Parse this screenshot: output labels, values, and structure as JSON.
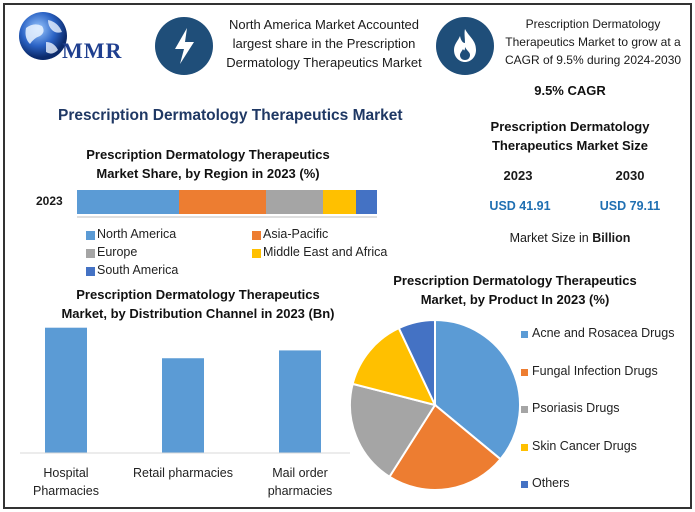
{
  "header": {
    "logo_text": "MMR",
    "box1": "North America Market Accounted largest share in the Prescription Dermatology Therapeutics Market",
    "box2": "Prescription Dermatology Therapeutics Market to grow at a CAGR of 9.5% during 2024-2030",
    "icon1": "lightning-icon",
    "icon2": "flame-icon"
  },
  "main_title": "Prescription Dermatology Therapeutics Market",
  "cagr": "9.5% CAGR",
  "size_panel": {
    "title": "Prescription Dermatology Therapeutics Market Size",
    "year1": "2023",
    "year2": "2030",
    "value1": "USD 41.91",
    "value2": "USD 79.11",
    "note_prefix": "Market Size in ",
    "note_bold": "Billion",
    "value_color": "#1f6fb2"
  },
  "chart_data": [
    {
      "type": "bar",
      "orientation": "horizontal-stacked",
      "title": "Prescription Dermatology Therapeutics Market Share, by Region in 2023 (%)",
      "categories": [
        "2023"
      ],
      "series": [
        {
          "name": "North America",
          "values": [
            34
          ],
          "color": "#5b9bd5"
        },
        {
          "name": "Asia-Pacific",
          "values": [
            29
          ],
          "color": "#ed7d31"
        },
        {
          "name": "Europe",
          "values": [
            19
          ],
          "color": "#a5a5a5"
        },
        {
          "name": "Middle East and Africa",
          "values": [
            11
          ],
          "color": "#ffc000"
        },
        {
          "name": "South America",
          "values": [
            7
          ],
          "color": "#4472c4"
        }
      ],
      "legend": "bottom"
    },
    {
      "type": "bar",
      "title": "Prescription Dermatology Therapeutics Market, by Distribution Channel in 2023 (Bn)",
      "categories": [
        "Hospital Pharmacies",
        "Retail pharmacies",
        "Mail order pharmacies"
      ],
      "values": [
        16,
        12.1,
        13.1
      ],
      "ylim": [
        0,
        16.6
      ],
      "color": "#5b9bd5",
      "grid": false
    },
    {
      "type": "pie",
      "title": "Prescription Dermatology Therapeutics Market, by Product In 2023 (%)",
      "labels": [
        "Acne and Rosacea Drugs",
        "Fungal Infection Drugs",
        "Psoriasis Drugs",
        "Skin Cancer Drugs",
        "Others"
      ],
      "values": [
        36,
        23,
        20,
        14,
        7
      ],
      "colors": [
        "#5b9bd5",
        "#ed7d31",
        "#a5a5a5",
        "#ffc000",
        "#4472c4"
      ],
      "legend": "right"
    }
  ]
}
